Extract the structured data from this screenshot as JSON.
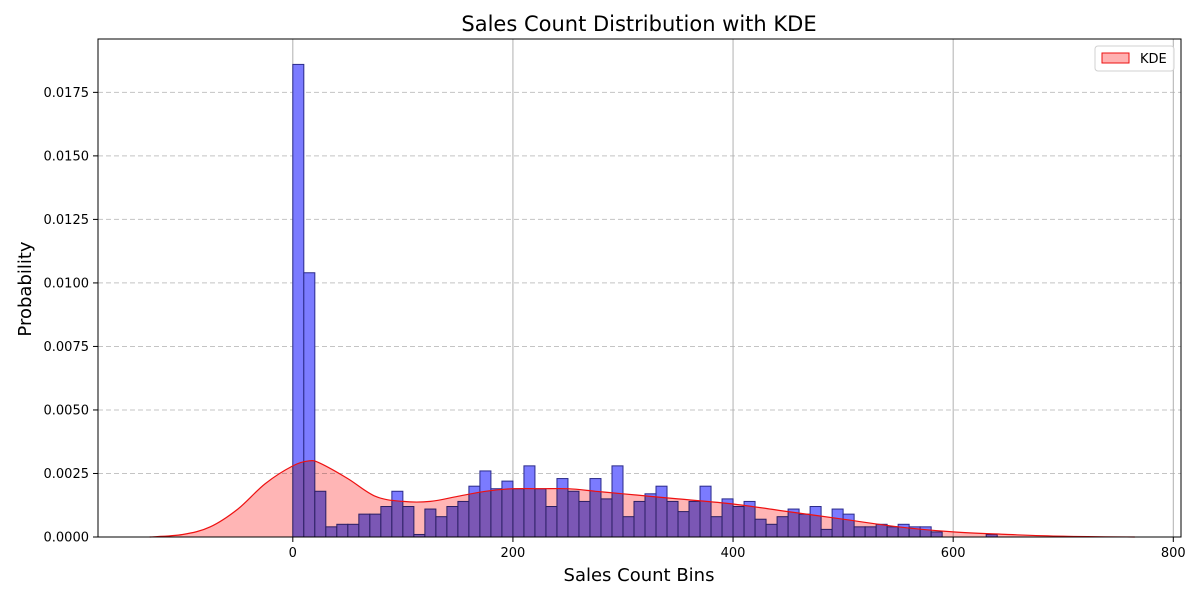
{
  "chart_data": {
    "type": "bar",
    "title": "Sales Count Distribution with KDE",
    "xlabel": "Sales Count Bins",
    "ylabel": "Probability",
    "xlim": [
      -177,
      807
    ],
    "ylim": [
      0,
      0.0196
    ],
    "x_ticks": [
      0,
      200,
      400,
      600,
      800
    ],
    "x_tick_labels": [
      "0",
      "200",
      "400",
      "600",
      "800"
    ],
    "y_ticks": [
      0,
      0.0025,
      0.005,
      0.0075,
      0.01,
      0.0125,
      0.015,
      0.0175
    ],
    "y_tick_labels": [
      "0.0000",
      "0.0025",
      "0.0050",
      "0.0075",
      "0.0100",
      "0.0125",
      "0.0150",
      "0.0175"
    ],
    "grid": {
      "x": "solid",
      "y": "dashed"
    },
    "legend": {
      "position": "top-right",
      "entries": [
        "KDE"
      ]
    },
    "colors": {
      "bars_fill": "#7b7bff",
      "bars_edge": "#2a2a8a",
      "kde_line": "#ee1111",
      "kde_fill": "#ffb1b1"
    },
    "histogram": {
      "bin_width": 10,
      "bin_starts": [
        0,
        10,
        20,
        30,
        40,
        50,
        60,
        70,
        80,
        90,
        100,
        110,
        120,
        130,
        140,
        150,
        160,
        170,
        180,
        190,
        200,
        210,
        220,
        230,
        240,
        250,
        260,
        270,
        280,
        290,
        300,
        310,
        320,
        330,
        340,
        350,
        360,
        370,
        380,
        390,
        400,
        410,
        420,
        430,
        440,
        450,
        460,
        470,
        480,
        490,
        500,
        510,
        520,
        530,
        540,
        550,
        560,
        570,
        580,
        590,
        600,
        610,
        620,
        630,
        640
      ],
      "values": [
        0.0186,
        0.0104,
        0.0018,
        0.0004,
        0.0005,
        0.0005,
        0.0009,
        0.0009,
        0.0012,
        0.0018,
        0.0012,
        0.0001,
        0.0011,
        0.0008,
        0.0012,
        0.0014,
        0.002,
        0.0026,
        0.0019,
        0.0022,
        0.0019,
        0.0028,
        0.0019,
        0.0012,
        0.0023,
        0.0018,
        0.0014,
        0.0023,
        0.0015,
        0.0028,
        0.0008,
        0.0014,
        0.0017,
        0.002,
        0.0014,
        0.001,
        0.0014,
        0.002,
        0.0008,
        0.0015,
        0.0012,
        0.0014,
        0.0007,
        0.0005,
        0.0008,
        0.0011,
        0.0009,
        0.0012,
        0.0003,
        0.0011,
        0.0009,
        0.0004,
        0.0004,
        0.0005,
        0.0004,
        0.0005,
        0.0004,
        0.0004,
        0.0002,
        0,
        0,
        0,
        0,
        0.0001,
        0
      ]
    },
    "kde": {
      "name": "KDE",
      "x": [
        -130,
        -100,
        -75,
        -50,
        -25,
        0,
        15,
        25,
        50,
        75,
        100,
        125,
        150,
        175,
        200,
        225,
        250,
        275,
        300,
        350,
        400,
        450,
        500,
        550,
        600,
        650,
        700,
        765
      ],
      "y": [
        0,
        0.0001,
        0.0004,
        0.0011,
        0.0021,
        0.0028,
        0.003,
        0.0029,
        0.0023,
        0.0016,
        0.0014,
        0.0014,
        0.0016,
        0.0018,
        0.0019,
        0.0019,
        0.0019,
        0.0018,
        0.0017,
        0.0015,
        0.0013,
        0.001,
        0.0007,
        0.0004,
        0.0002,
        0.0001,
        3e-05,
        0
      ]
    }
  }
}
